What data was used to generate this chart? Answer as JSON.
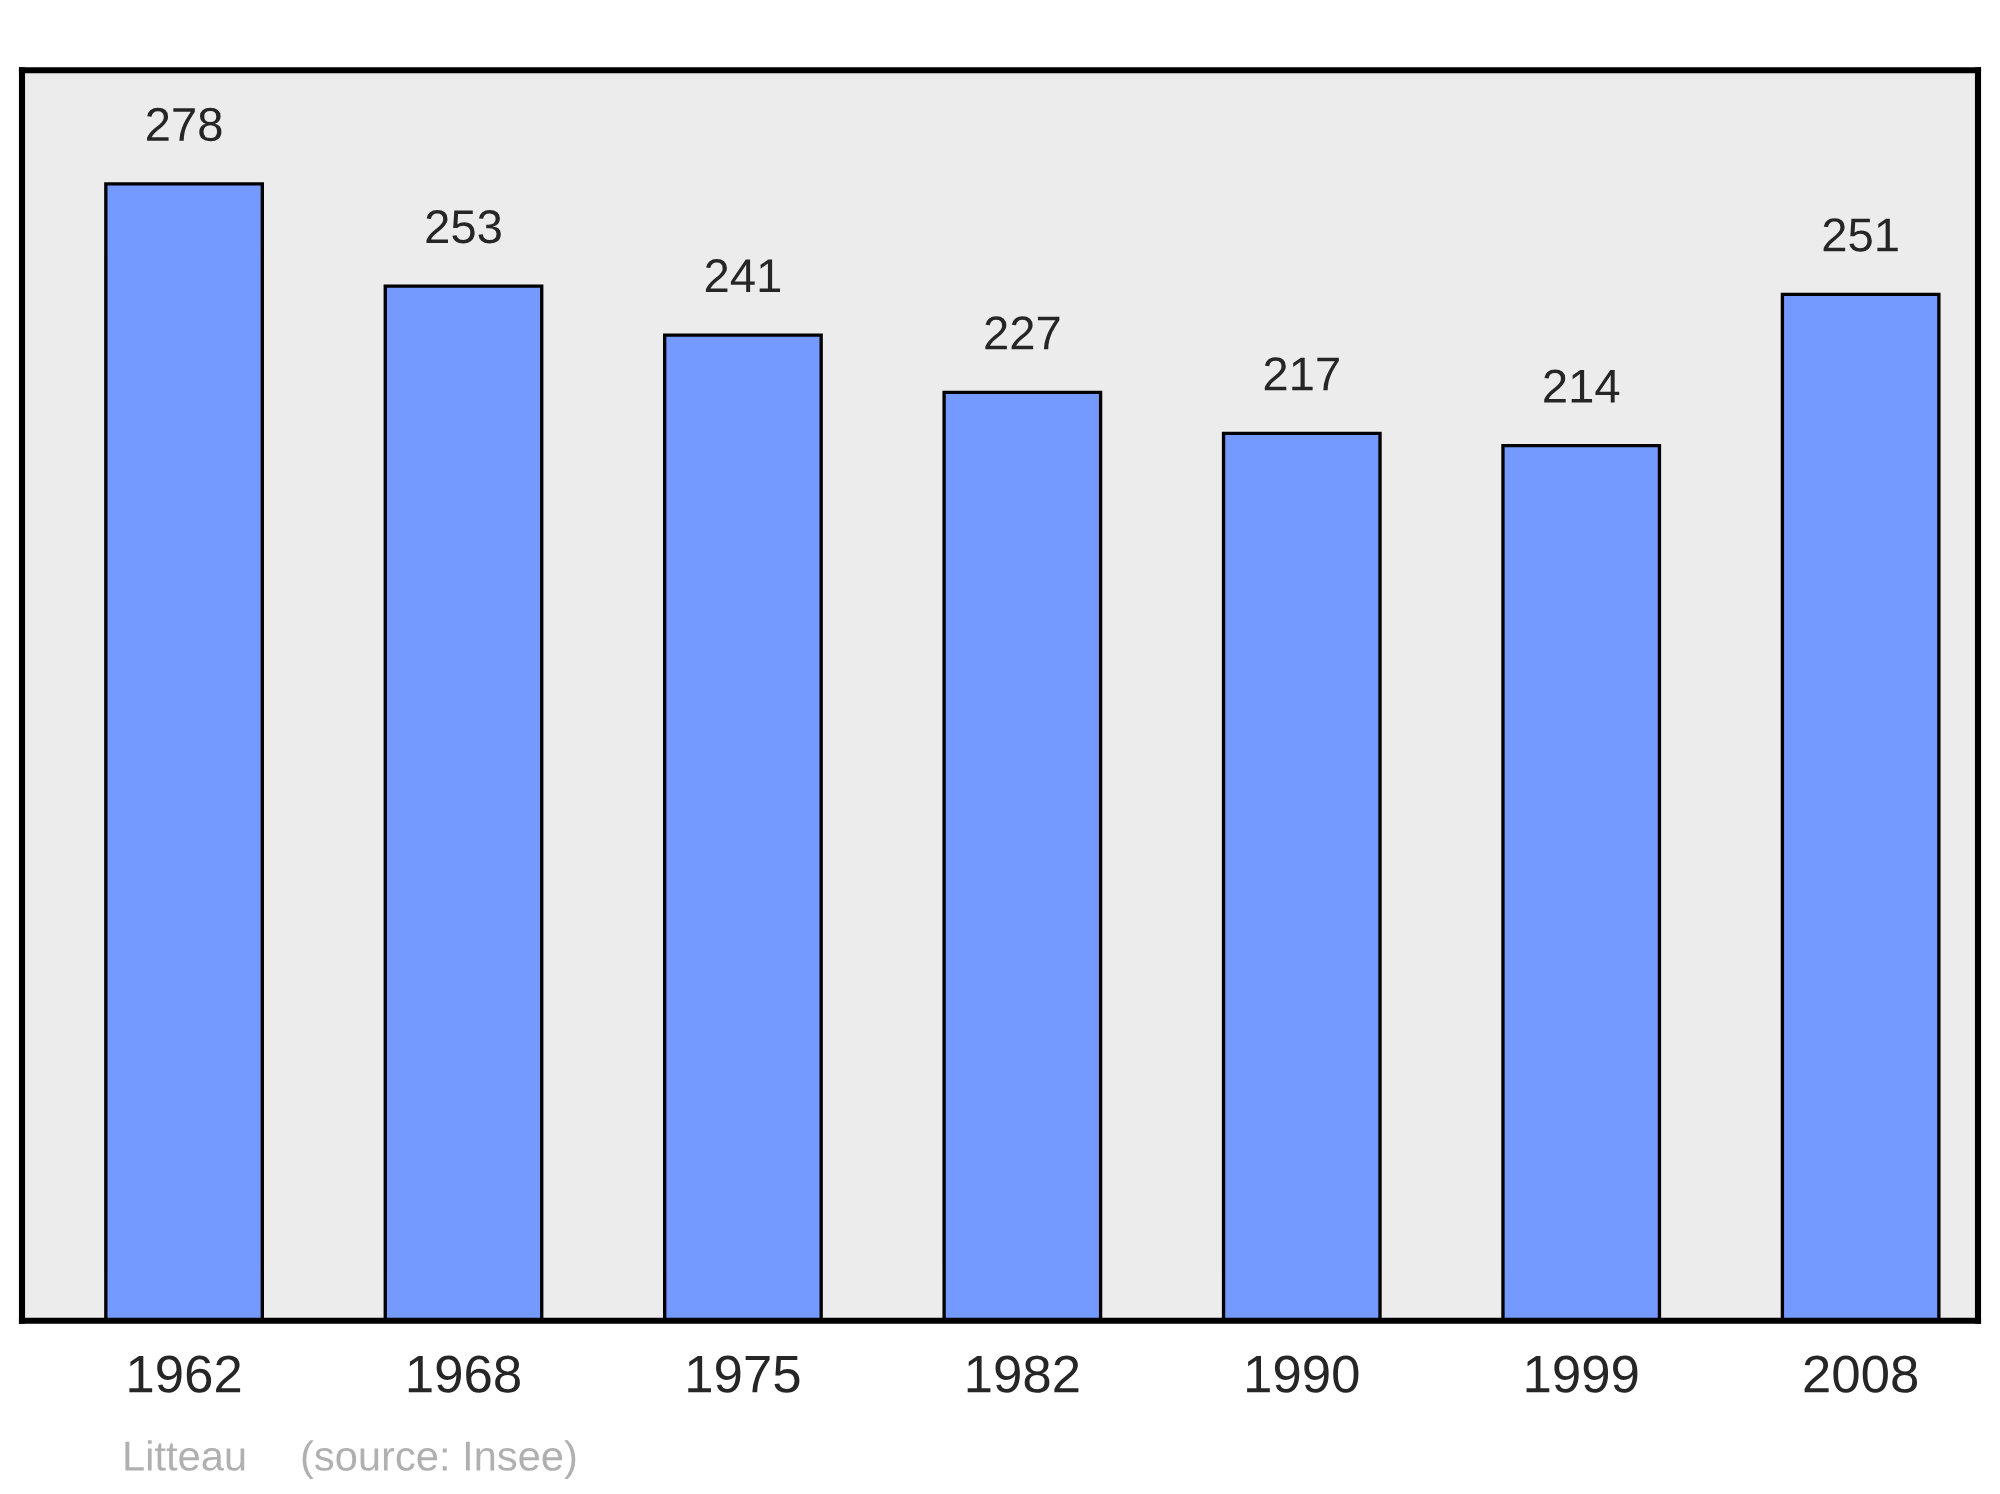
{
  "chart_data": {
    "type": "bar",
    "categories": [
      "1962",
      "1968",
      "1975",
      "1982",
      "1990",
      "1999",
      "2008"
    ],
    "values": [
      278,
      253,
      241,
      227,
      217,
      214,
      251
    ],
    "color": "#7499ff",
    "data_labels": true,
    "tick_labels": "x",
    "grid": false,
    "legend": false,
    "annotations": [
      "Litteau",
      "(source: Insee)"
    ]
  }
}
